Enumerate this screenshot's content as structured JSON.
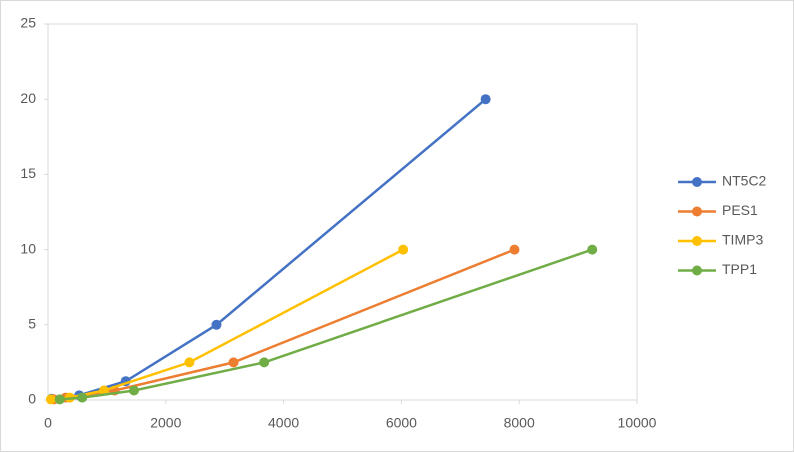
{
  "chart_data": {
    "type": "scatter-line",
    "xlim": [
      0,
      10000
    ],
    "xticks": [
      0,
      2000,
      4000,
      6000,
      8000,
      10000
    ],
    "ylim": [
      0,
      25
    ],
    "yticks": [
      0,
      5,
      10,
      15,
      20,
      25
    ],
    "legend": "right",
    "series": [
      {
        "name": "NT5C2",
        "color": "#4472c4",
        "x": [
          60,
          530,
          1320,
          2860,
          7430
        ],
        "values": [
          0.08,
          0.31,
          1.25,
          5,
          20
        ]
      },
      {
        "name": "PES1",
        "color": "#ed7d31",
        "x": [
          100,
          300,
          1130,
          3150,
          7920
        ],
        "values": [
          0.04,
          0.16,
          0.63,
          2.5,
          10
        ]
      },
      {
        "name": "TIMP3",
        "color": "#ffc000",
        "x": [
          50,
          370,
          950,
          2400,
          6030
        ],
        "values": [
          0.04,
          0.16,
          0.63,
          2.5,
          10
        ]
      },
      {
        "name": "TPP1",
        "color": "#70ad47",
        "x": [
          200,
          580,
          1460,
          3670,
          9240
        ],
        "values": [
          0.04,
          0.16,
          0.63,
          2.5,
          10
        ]
      }
    ]
  }
}
